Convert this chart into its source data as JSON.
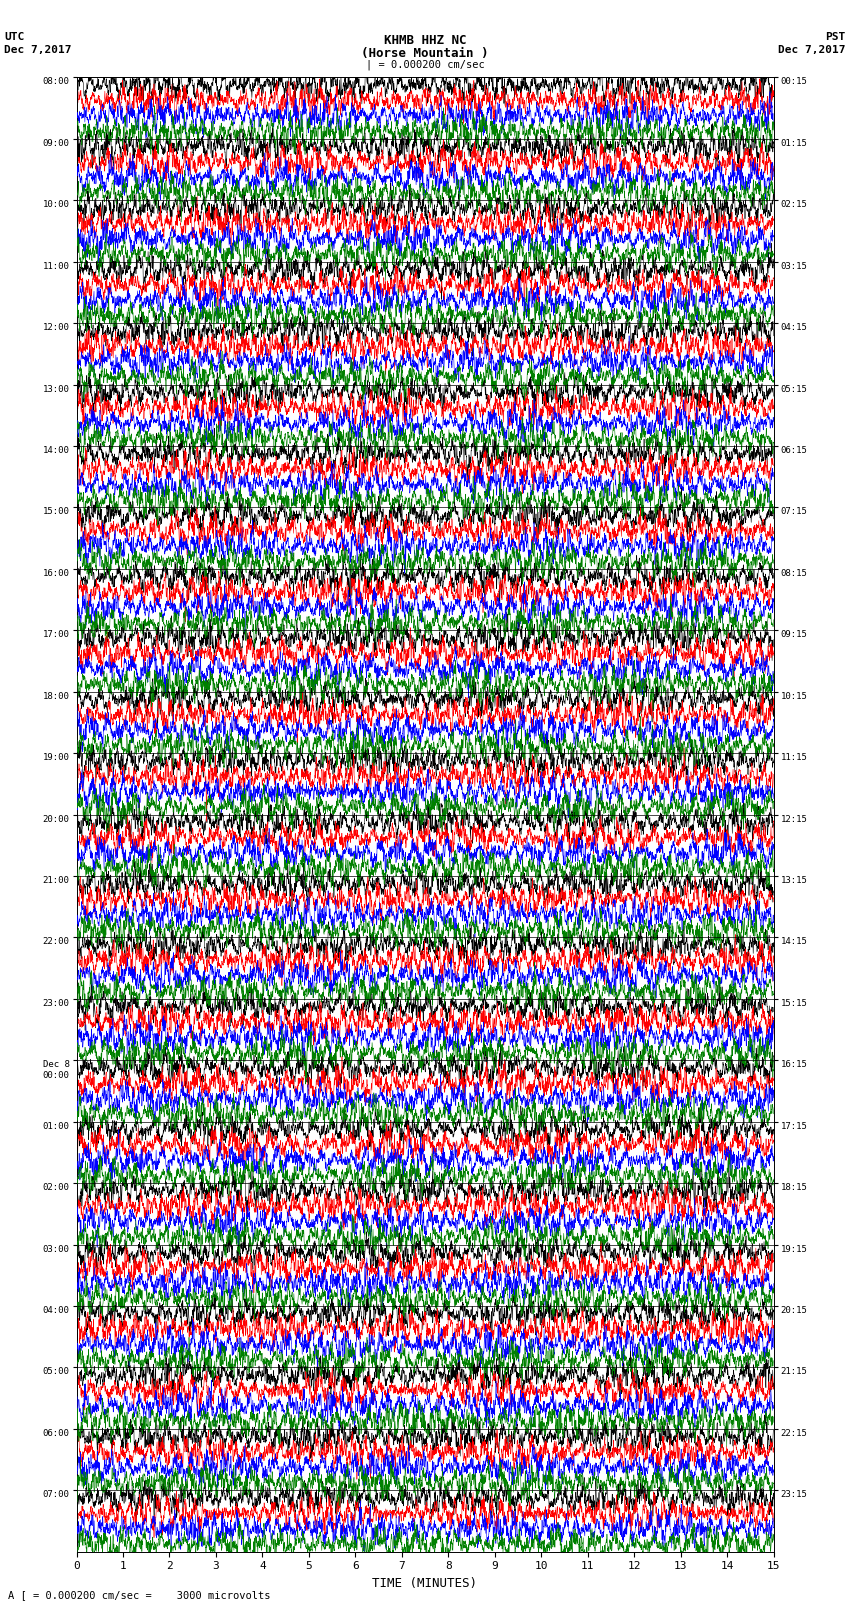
{
  "title_line1": "KHMB HHZ NC",
  "title_line2": "(Horse Mountain )",
  "title_scale": "| = 0.000200 cm/sec",
  "left_header_line1": "UTC",
  "left_header_line2": "Dec 7,2017",
  "right_header_line1": "PST",
  "right_header_line2": "Dec 7,2017",
  "xlabel": "TIME (MINUTES)",
  "bottom_note": "A [ = 0.000200 cm/sec =    3000 microvolts",
  "utc_labels": [
    "08:00",
    "09:00",
    "10:00",
    "11:00",
    "12:00",
    "13:00",
    "14:00",
    "15:00",
    "16:00",
    "17:00",
    "18:00",
    "19:00",
    "20:00",
    "21:00",
    "22:00",
    "23:00",
    "Dec 8\n00:00",
    "01:00",
    "02:00",
    "03:00",
    "04:00",
    "05:00",
    "06:00",
    "07:00"
  ],
  "pst_labels": [
    "00:15",
    "01:15",
    "02:15",
    "03:15",
    "04:15",
    "05:15",
    "06:15",
    "07:15",
    "08:15",
    "09:15",
    "10:15",
    "11:15",
    "12:15",
    "13:15",
    "14:15",
    "15:15",
    "16:15",
    "17:15",
    "18:15",
    "19:15",
    "20:15",
    "21:15",
    "22:15",
    "23:15"
  ],
  "num_rows": 24,
  "traces_per_row": 4,
  "trace_colors": [
    "black",
    "red",
    "blue",
    "green"
  ],
  "x_ticks": [
    0,
    1,
    2,
    3,
    4,
    5,
    6,
    7,
    8,
    9,
    10,
    11,
    12,
    13,
    14,
    15
  ],
  "x_min": 0,
  "x_max": 15,
  "bg_color": "white",
  "trace_linewidth": 0.4,
  "amplitude_scale": 0.85
}
